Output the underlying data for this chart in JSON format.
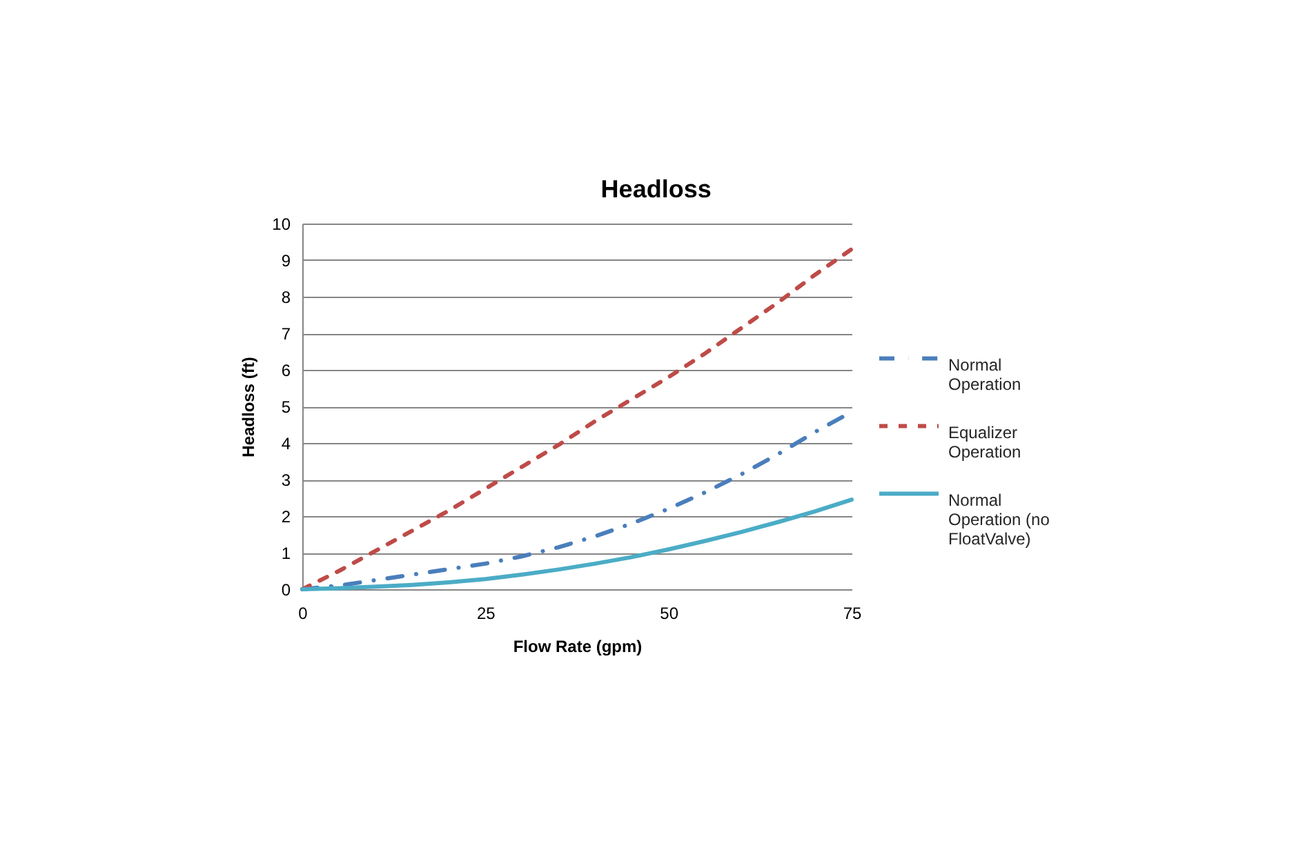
{
  "chart_data": {
    "type": "line",
    "title": "Headloss",
    "xlabel": "Flow Rate (gpm)",
    "ylabel": "Headloss (ft)",
    "x": [
      0,
      5,
      10,
      15,
      20,
      25,
      30,
      35,
      40,
      45,
      50,
      55,
      60,
      65,
      70,
      75
    ],
    "series": [
      {
        "name": "Normal Operation",
        "color": "#4a7ebb",
        "line_style": "dashdot",
        "values": [
          0,
          0.1,
          0.25,
          0.4,
          0.55,
          0.7,
          0.9,
          1.15,
          1.45,
          1.8,
          2.2,
          2.65,
          3.15,
          3.7,
          4.3,
          4.85
        ]
      },
      {
        "name": "Equalizer Operation",
        "color": "#be4b48",
        "line_style": "dashed",
        "values": [
          0,
          0.5,
          1.05,
          1.6,
          2.15,
          2.75,
          3.35,
          3.95,
          4.6,
          5.2,
          5.8,
          6.45,
          7.15,
          7.85,
          8.6,
          9.3
        ]
      },
      {
        "name": "Normal Operation (no FloatValve)",
        "color": "#4bacc6",
        "line_style": "solid",
        "values": [
          0,
          0.03,
          0.07,
          0.12,
          0.19,
          0.28,
          0.4,
          0.54,
          0.7,
          0.88,
          1.09,
          1.32,
          1.57,
          1.84,
          2.13,
          2.45
        ]
      }
    ],
    "xlim": [
      0,
      75
    ],
    "xticks": [
      0,
      25,
      50,
      75
    ],
    "ylim": [
      0,
      10
    ],
    "yticks": [
      0,
      1,
      2,
      3,
      4,
      5,
      6,
      7,
      8,
      9,
      10
    ],
    "grid": "y",
    "legend": "right"
  }
}
